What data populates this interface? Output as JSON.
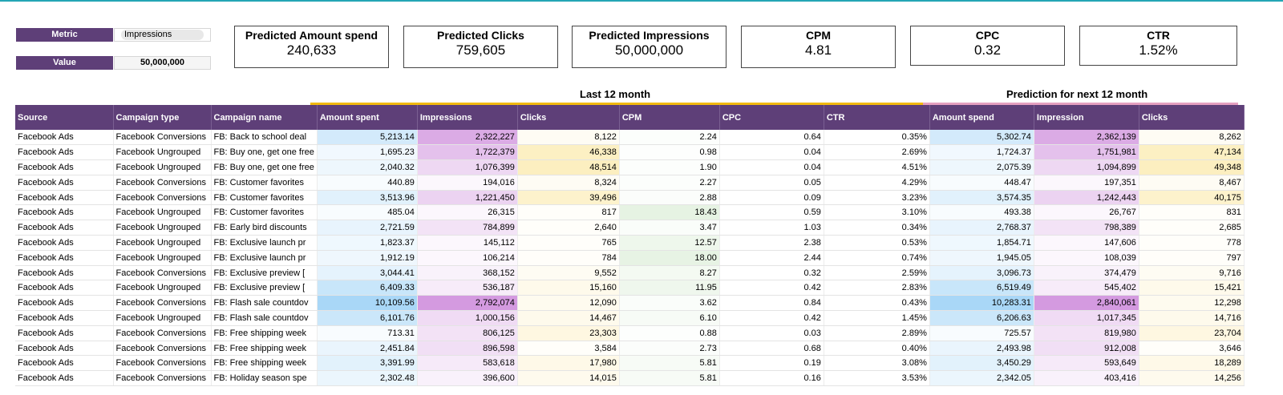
{
  "controls": {
    "metric_label": "Metric",
    "metric_value": "Impressions",
    "value_label": "Value",
    "value_value": "50,000,000"
  },
  "kpis": [
    {
      "title": "Predicted Amount spend",
      "value": "240,633"
    },
    {
      "title": "Predicted Clicks",
      "value": "759,605"
    },
    {
      "title": "Predicted Impressions",
      "value": "50,000,000"
    },
    {
      "title": "CPM",
      "value": "4.81"
    },
    {
      "title": "CPC",
      "value": "0.32"
    },
    {
      "title": "CTR",
      "value": "1.52%"
    }
  ],
  "sections": {
    "last": "Last 12 month",
    "next": "Prediction for next 12 month"
  },
  "colors": {
    "header_bg": "#5e3f78",
    "last_bar": "#f2b90f",
    "next_bar": "#e5a0c0",
    "spend_max": "#a9d7f7",
    "impr_max": "#d49ae0",
    "clicks_max": "#fcefc0",
    "cpm_max": "#e6f3e3"
  },
  "table": {
    "columns": [
      "Source",
      "Campaign type",
      "Campaign name",
      "Amount spent",
      "Impressions",
      "Clicks",
      "CPM",
      "CPC",
      "CTR",
      "Amount spend",
      "Impression",
      "Clicks"
    ],
    "rows": [
      [
        "Facebook Ads",
        "Facebook Conversions",
        "FB: Back to school deal",
        "5,213.14",
        "2,322,227",
        "8,122",
        "2.24",
        "0.64",
        "0.35%",
        "5,302.74",
        "2,362,139",
        "8,262"
      ],
      [
        "Facebook Ads",
        "Facebook Ungrouped",
        "FB: Buy one, get one free",
        "1,695.23",
        "1,722,379",
        "46,338",
        "0.98",
        "0.04",
        "2.69%",
        "1,724.37",
        "1,751,981",
        "47,134"
      ],
      [
        "Facebook Ads",
        "Facebook Ungrouped",
        "FB: Buy one, get one free",
        "2,040.32",
        "1,076,399",
        "48,514",
        "1.90",
        "0.04",
        "4.51%",
        "2,075.39",
        "1,094,899",
        "49,348"
      ],
      [
        "Facebook Ads",
        "Facebook Conversions",
        "FB: Customer favorites",
        "440.89",
        "194,016",
        "8,324",
        "2.27",
        "0.05",
        "4.29%",
        "448.47",
        "197,351",
        "8,467"
      ],
      [
        "Facebook Ads",
        "Facebook Conversions",
        "FB: Customer favorites",
        "3,513.96",
        "1,221,450",
        "39,496",
        "2.88",
        "0.09",
        "3.23%",
        "3,574.35",
        "1,242,443",
        "40,175"
      ],
      [
        "Facebook Ads",
        "Facebook Ungrouped",
        "FB: Customer favorites",
        "485.04",
        "26,315",
        "817",
        "18.43",
        "0.59",
        "3.10%",
        "493.38",
        "26,767",
        "831"
      ],
      [
        "Facebook Ads",
        "Facebook Ungrouped",
        "FB: Early bird discounts",
        "2,721.59",
        "784,899",
        "2,640",
        "3.47",
        "1.03",
        "0.34%",
        "2,768.37",
        "798,389",
        "2,685"
      ],
      [
        "Facebook Ads",
        "Facebook Ungrouped",
        "FB: Exclusive launch pr",
        "1,823.37",
        "145,112",
        "765",
        "12.57",
        "2.38",
        "0.53%",
        "1,854.71",
        "147,606",
        "778"
      ],
      [
        "Facebook Ads",
        "Facebook Ungrouped",
        "FB: Exclusive launch pr",
        "1,912.19",
        "106,214",
        "784",
        "18.00",
        "2.44",
        "0.74%",
        "1,945.05",
        "108,039",
        "797"
      ],
      [
        "Facebook Ads",
        "Facebook Conversions",
        "FB: Exclusive preview [",
        "3,044.41",
        "368,152",
        "9,552",
        "8.27",
        "0.32",
        "2.59%",
        "3,096.73",
        "374,479",
        "9,716"
      ],
      [
        "Facebook Ads",
        "Facebook Ungrouped",
        "FB: Exclusive preview [",
        "6,409.33",
        "536,187",
        "15,160",
        "11.95",
        "0.42",
        "2.83%",
        "6,519.49",
        "545,402",
        "15,421"
      ],
      [
        "Facebook Ads",
        "Facebook Conversions",
        "FB: Flash sale countdov",
        "10,109.56",
        "2,792,074",
        "12,090",
        "3.62",
        "0.84",
        "0.43%",
        "10,283.31",
        "2,840,061",
        "12,298"
      ],
      [
        "Facebook Ads",
        "Facebook Ungrouped",
        "FB: Flash sale countdov",
        "6,101.76",
        "1,000,156",
        "14,467",
        "6.10",
        "0.42",
        "1.45%",
        "6,206.63",
        "1,017,345",
        "14,716"
      ],
      [
        "Facebook Ads",
        "Facebook Conversions",
        "FB: Free shipping week",
        "713.31",
        "806,125",
        "23,303",
        "0.88",
        "0.03",
        "2.89%",
        "725.57",
        "819,980",
        "23,704"
      ],
      [
        "Facebook Ads",
        "Facebook Conversions",
        "FB: Free shipping week",
        "2,451.84",
        "896,598",
        "3,584",
        "2.73",
        "0.68",
        "0.40%",
        "2,493.98",
        "912,008",
        "3,646"
      ],
      [
        "Facebook Ads",
        "Facebook Conversions",
        "FB: Free shipping week",
        "3,391.99",
        "583,618",
        "17,980",
        "5.81",
        "0.19",
        "3.08%",
        "3,450.29",
        "593,649",
        "18,289"
      ],
      [
        "Facebook Ads",
        "Facebook Conversions",
        "FB: Holiday season spe",
        "2,302.48",
        "396,600",
        "14,015",
        "5.81",
        "0.16",
        "3.53%",
        "2,342.05",
        "403,416",
        "14,256"
      ]
    ]
  }
}
